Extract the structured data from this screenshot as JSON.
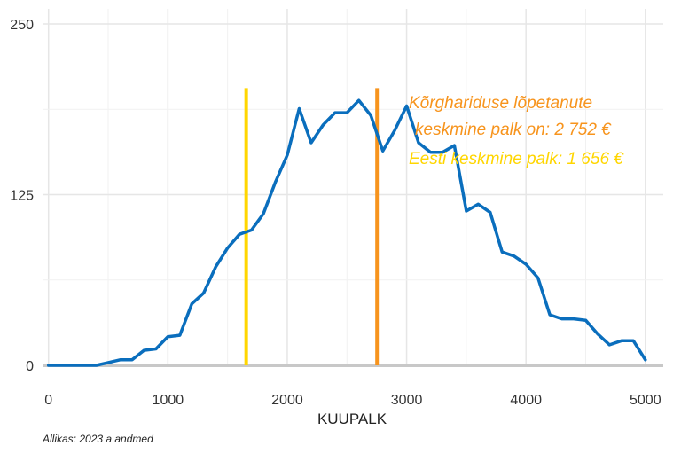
{
  "chart_data": {
    "type": "line",
    "xlabel": "KUUPALK",
    "ylabel": "",
    "xlim": [
      -50,
      5150
    ],
    "ylim": [
      0,
      250
    ],
    "x_ticks": [
      0,
      1000,
      2000,
      3000,
      4000,
      5000
    ],
    "y_ticks": [
      0,
      125,
      250
    ],
    "grid": true,
    "series": [
      {
        "color": "#0a6ebd",
        "x": [
          0,
          100,
          200,
          300,
          400,
          500,
          600,
          700,
          800,
          900,
          1000,
          1100,
          1200,
          1300,
          1400,
          1500,
          1600,
          1700,
          1800,
          1900,
          2000,
          2100,
          2200,
          2300,
          2400,
          2500,
          2600,
          2700,
          2800,
          2900,
          3000,
          3100,
          3200,
          3300,
          3400,
          3500,
          3600,
          3700,
          3800,
          3900,
          4000,
          4100,
          4200,
          4300,
          4400,
          4500,
          4600,
          4700,
          4800,
          4900,
          5000
        ],
        "y": [
          0,
          0,
          0,
          0,
          0,
          2,
          4,
          4,
          11,
          12,
          21,
          22,
          45,
          53,
          72,
          86,
          96,
          99,
          111,
          134,
          154,
          188,
          163,
          176,
          185,
          185,
          194,
          183,
          157,
          172,
          190,
          163,
          156,
          156,
          161,
          113,
          118,
          112,
          83,
          80,
          74,
          64,
          37,
          34,
          34,
          33,
          23,
          15,
          18,
          18,
          4
        ]
      }
    ],
    "reference_lines": [
      {
        "x": 1656,
        "color": "#ffd600",
        "y_top": 203
      },
      {
        "x": 2752,
        "color": "#f7941d",
        "y_top": 203
      }
    ],
    "annotations": [
      {
        "text": "Kõrghariduse lõpetanute",
        "color": "#f7941d"
      },
      {
        "text": "keskmine palk on: 2 752 €",
        "color": "#f7941d"
      },
      {
        "text": "Eesti keskmine palk: 1 656 €",
        "color": "#ffd600"
      }
    ]
  },
  "caption": "Allikas: 2023 a andmed"
}
